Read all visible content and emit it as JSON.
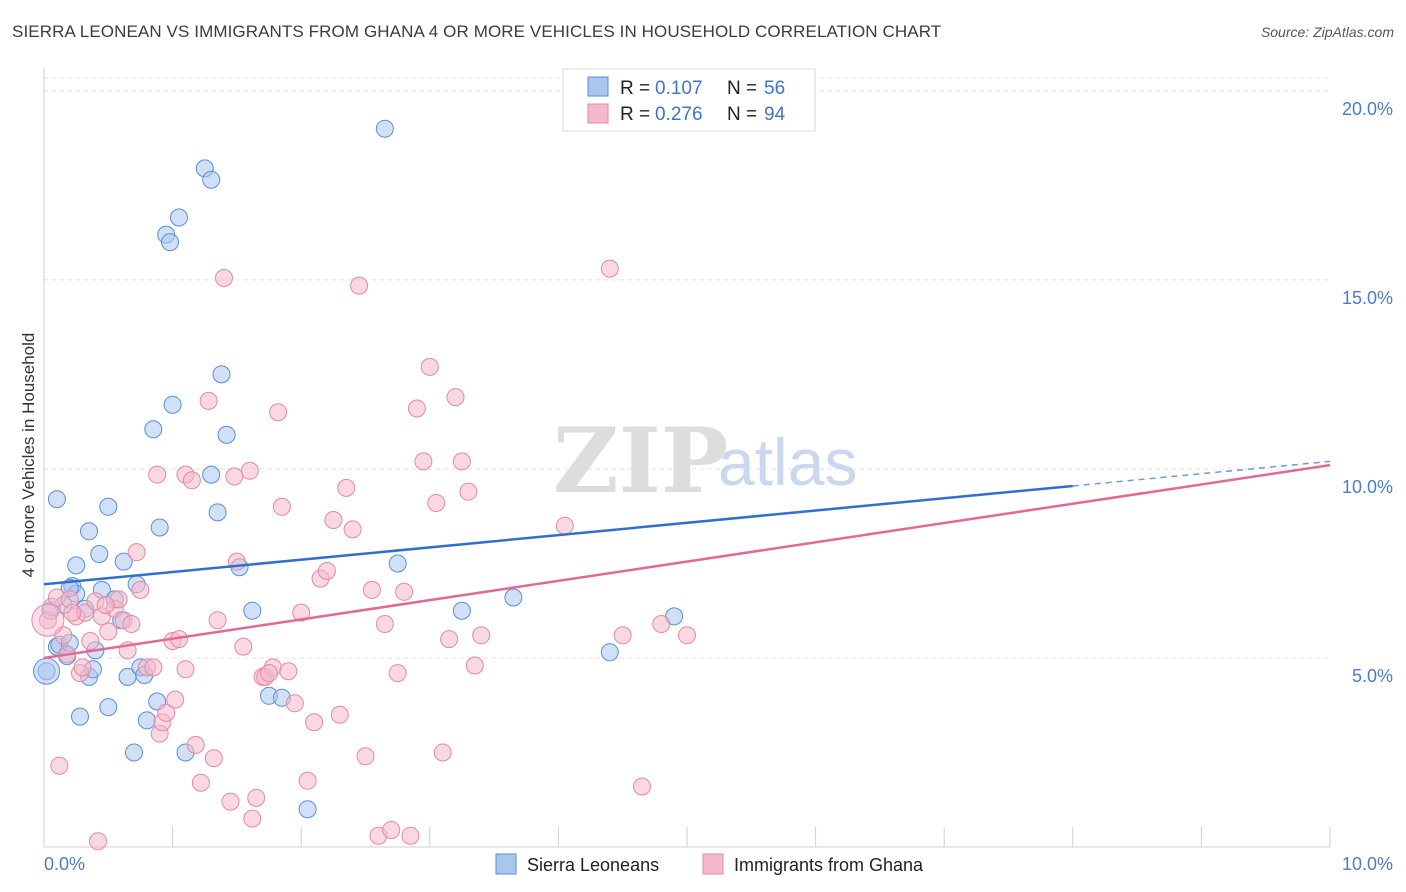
{
  "header": {
    "title": "SIERRA LEONEAN VS IMMIGRANTS FROM GHANA 4 OR MORE VEHICLES IN HOUSEHOLD CORRELATION CHART",
    "source": "Source: ZipAtlas.com"
  },
  "watermark": {
    "zip": "ZIP",
    "atlas": "atlas"
  },
  "legend": {
    "r_label": "R = ",
    "n_label": "N = ",
    "rows": [
      {
        "r": "0.107",
        "n": "56",
        "color": "#a9c6ee"
      },
      {
        "r": "0.276",
        "n": "94",
        "color": "#f6b8cb"
      }
    ]
  },
  "chart_data": {
    "type": "scatter",
    "title": "SIERRA LEONEAN VS IMMIGRANTS FROM GHANA 4 OR MORE VEHICLES IN HOUSEHOLD CORRELATION CHART",
    "xlabel": "",
    "ylabel": "4 or more Vehicles in Household",
    "xlim": [
      0,
      10
    ],
    "ylim": [
      0,
      20.5
    ],
    "x_tick_labels": [
      "0.0%",
      "10.0%"
    ],
    "y_ticks": [
      5,
      10,
      15,
      20
    ],
    "y_tick_labels": [
      "5.0%",
      "10.0%",
      "15.0%",
      "20.0%"
    ],
    "grid": true,
    "legend_position": "top-center",
    "series": [
      {
        "name": "Sierra Leoneans",
        "color": "#a9c6ee",
        "stroke": "#5b8fd6",
        "trend": {
          "x0": 0,
          "y0": 6.95,
          "x1": 8.0,
          "y1": 9.55,
          "dash_to_x": 10,
          "dash_to_y": 10.2
        },
        "points": [
          [
            0.02,
            4.65
          ],
          [
            0.05,
            6.25
          ],
          [
            0.1,
            5.3
          ],
          [
            0.12,
            5.35
          ],
          [
            0.18,
            5.05
          ],
          [
            0.15,
            6.4
          ],
          [
            0.2,
            5.4
          ],
          [
            0.22,
            6.9
          ],
          [
            0.25,
            6.7
          ],
          [
            0.28,
            3.45
          ],
          [
            0.32,
            6.3
          ],
          [
            0.35,
            4.5
          ],
          [
            0.38,
            4.7
          ],
          [
            0.4,
            5.2
          ],
          [
            0.43,
            7.75
          ],
          [
            0.45,
            6.8
          ],
          [
            0.5,
            3.7
          ],
          [
            0.55,
            6.55
          ],
          [
            0.6,
            6.0
          ],
          [
            0.62,
            7.55
          ],
          [
            0.65,
            4.5
          ],
          [
            0.7,
            2.5
          ],
          [
            0.72,
            6.95
          ],
          [
            0.75,
            4.75
          ],
          [
            0.8,
            3.35
          ],
          [
            0.85,
            11.05
          ],
          [
            0.88,
            3.85
          ],
          [
            0.9,
            8.45
          ],
          [
            0.95,
            16.2
          ],
          [
            0.98,
            16.0
          ],
          [
            1.0,
            11.7
          ],
          [
            1.05,
            16.65
          ],
          [
            1.1,
            2.5
          ],
          [
            1.25,
            17.95
          ],
          [
            1.3,
            9.85
          ],
          [
            1.35,
            8.85
          ],
          [
            1.38,
            12.5
          ],
          [
            1.42,
            10.9
          ],
          [
            1.52,
            7.4
          ],
          [
            1.62,
            6.25
          ],
          [
            1.75,
            4.0
          ],
          [
            1.85,
            3.95
          ],
          [
            2.05,
            1.0
          ],
          [
            2.65,
            19.0
          ],
          [
            2.75,
            7.5
          ],
          [
            3.25,
            6.25
          ],
          [
            3.65,
            6.6
          ],
          [
            4.4,
            5.15
          ],
          [
            4.9,
            6.1
          ],
          [
            0.5,
            9.0
          ],
          [
            0.35,
            8.35
          ],
          [
            0.25,
            7.45
          ],
          [
            0.1,
            9.2
          ],
          [
            0.2,
            6.85
          ],
          [
            0.78,
            4.55
          ],
          [
            1.3,
            17.65
          ]
        ]
      },
      {
        "name": "Immigrants from Ghana",
        "color": "#f6b8cb",
        "stroke": "#e38aa6",
        "trend": {
          "x0": 0,
          "y0": 5.0,
          "x1": 10,
          "y1": 10.1
        },
        "points": [
          [
            0.03,
            6.0
          ],
          [
            0.06,
            6.35
          ],
          [
            0.1,
            6.6
          ],
          [
            0.15,
            5.6
          ],
          [
            0.18,
            5.1
          ],
          [
            0.2,
            6.55
          ],
          [
            0.25,
            6.1
          ],
          [
            0.28,
            4.6
          ],
          [
            0.32,
            6.2
          ],
          [
            0.36,
            5.45
          ],
          [
            0.4,
            6.5
          ],
          [
            0.45,
            6.1
          ],
          [
            0.5,
            5.7
          ],
          [
            0.55,
            6.3
          ],
          [
            0.58,
            6.55
          ],
          [
            0.62,
            6.0
          ],
          [
            0.68,
            5.9
          ],
          [
            0.72,
            7.8
          ],
          [
            0.75,
            6.8
          ],
          [
            0.8,
            4.75
          ],
          [
            0.85,
            4.75
          ],
          [
            0.9,
            3.0
          ],
          [
            0.92,
            3.3
          ],
          [
            0.95,
            3.55
          ],
          [
            1.0,
            5.45
          ],
          [
            1.05,
            5.5
          ],
          [
            1.1,
            9.85
          ],
          [
            1.15,
            9.7
          ],
          [
            1.18,
            2.7
          ],
          [
            1.22,
            1.7
          ],
          [
            1.28,
            11.8
          ],
          [
            1.32,
            2.35
          ],
          [
            1.35,
            6.0
          ],
          [
            1.4,
            15.05
          ],
          [
            1.45,
            1.2
          ],
          [
            1.5,
            7.55
          ],
          [
            1.55,
            5.3
          ],
          [
            1.6,
            9.95
          ],
          [
            1.62,
            0.75
          ],
          [
            1.65,
            1.3
          ],
          [
            1.7,
            4.5
          ],
          [
            1.72,
            4.5
          ],
          [
            1.78,
            4.75
          ],
          [
            1.82,
            11.5
          ],
          [
            1.85,
            9.0
          ],
          [
            1.9,
            4.65
          ],
          [
            1.95,
            3.8
          ],
          [
            2.0,
            6.2
          ],
          [
            2.05,
            1.75
          ],
          [
            2.1,
            3.3
          ],
          [
            2.15,
            7.1
          ],
          [
            2.2,
            7.3
          ],
          [
            2.25,
            8.65
          ],
          [
            2.3,
            3.5
          ],
          [
            2.35,
            9.5
          ],
          [
            2.4,
            8.4
          ],
          [
            2.45,
            14.85
          ],
          [
            2.5,
            2.4
          ],
          [
            2.55,
            6.8
          ],
          [
            2.6,
            0.3
          ],
          [
            2.65,
            5.9
          ],
          [
            2.7,
            0.45
          ],
          [
            2.75,
            4.6
          ],
          [
            2.8,
            6.75
          ],
          [
            2.85,
            0.3
          ],
          [
            2.9,
            11.6
          ],
          [
            2.95,
            10.2
          ],
          [
            3.0,
            12.7
          ],
          [
            3.05,
            9.1
          ],
          [
            3.1,
            2.5
          ],
          [
            3.15,
            5.5
          ],
          [
            3.2,
            11.9
          ],
          [
            3.25,
            10.2
          ],
          [
            3.3,
            9.4
          ],
          [
            3.35,
            4.8
          ],
          [
            3.4,
            5.6
          ],
          [
            4.05,
            8.5
          ],
          [
            4.4,
            15.3
          ],
          [
            4.5,
            5.6
          ],
          [
            4.65,
            1.6
          ],
          [
            4.8,
            5.9
          ],
          [
            5.0,
            5.6
          ],
          [
            5.9,
            19.9
          ],
          [
            1.1,
            4.7
          ],
          [
            0.65,
            5.2
          ],
          [
            0.48,
            6.4
          ],
          [
            0.3,
            4.75
          ],
          [
            0.42,
            0.15
          ],
          [
            0.22,
            6.2
          ],
          [
            0.12,
            2.15
          ],
          [
            1.48,
            9.8
          ],
          [
            1.75,
            4.6
          ],
          [
            1.02,
            3.9
          ],
          [
            0.88,
            9.85
          ]
        ]
      }
    ]
  }
}
